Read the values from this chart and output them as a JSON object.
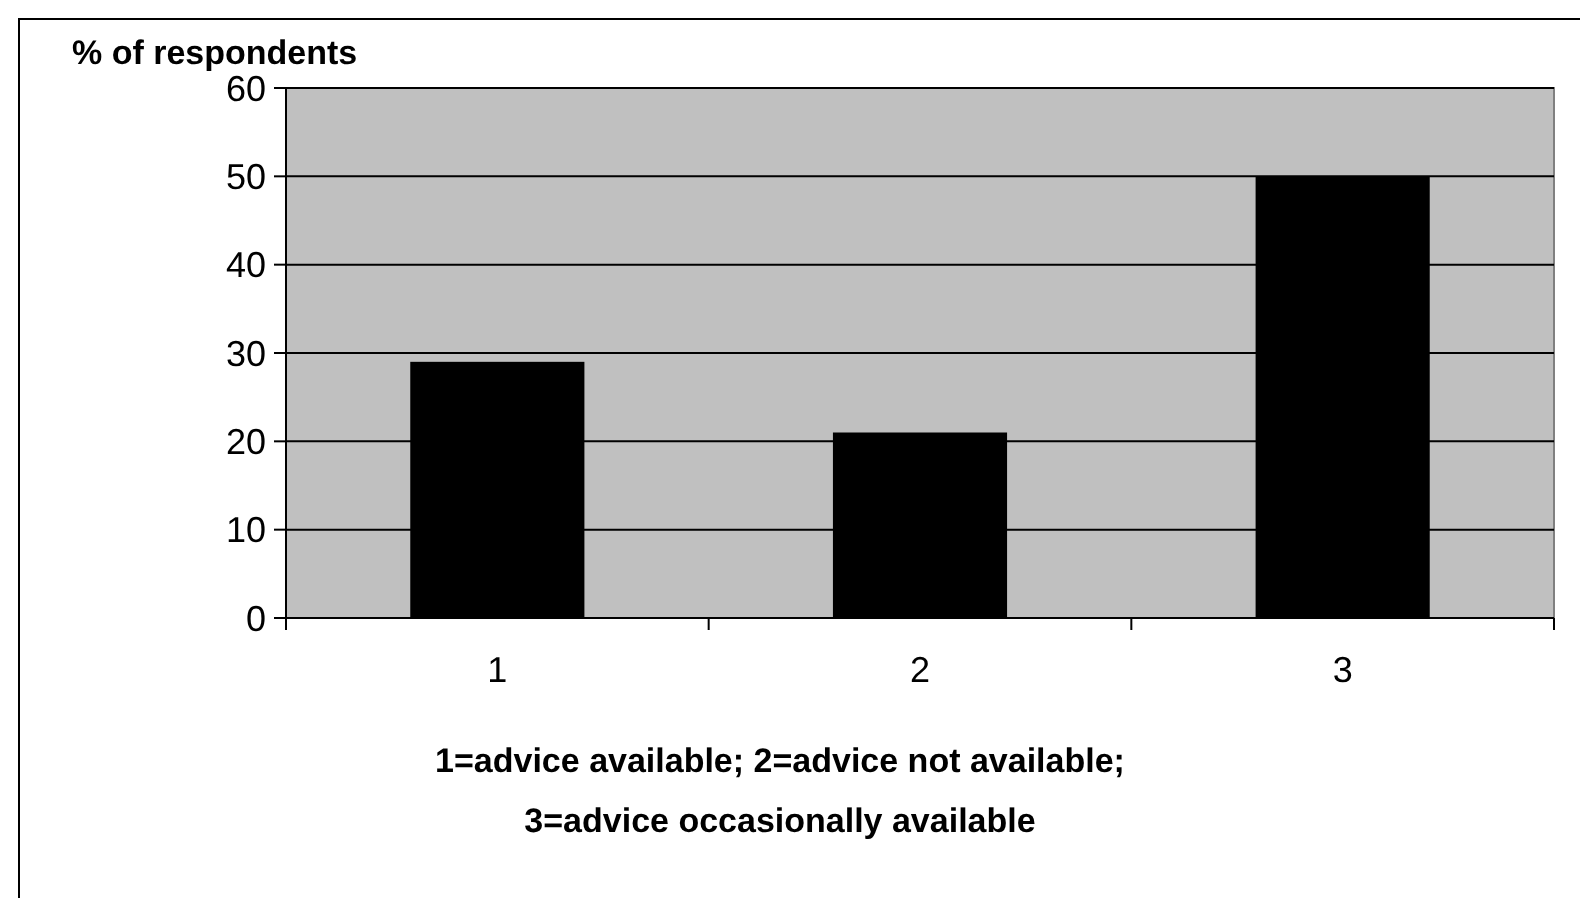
{
  "chart_data": {
    "type": "bar",
    "ylabel": "% of respondents",
    "xlabel": "1=advice available; 2=advice not available; 3=advice occasionally available",
    "categories": [
      "1",
      "2",
      "3"
    ],
    "values": [
      29,
      21,
      50
    ],
    "color": "#000000",
    "ylim": [
      0,
      60
    ],
    "yticks": [
      0,
      10,
      20,
      30,
      40,
      50,
      60
    ],
    "grid": "y"
  }
}
